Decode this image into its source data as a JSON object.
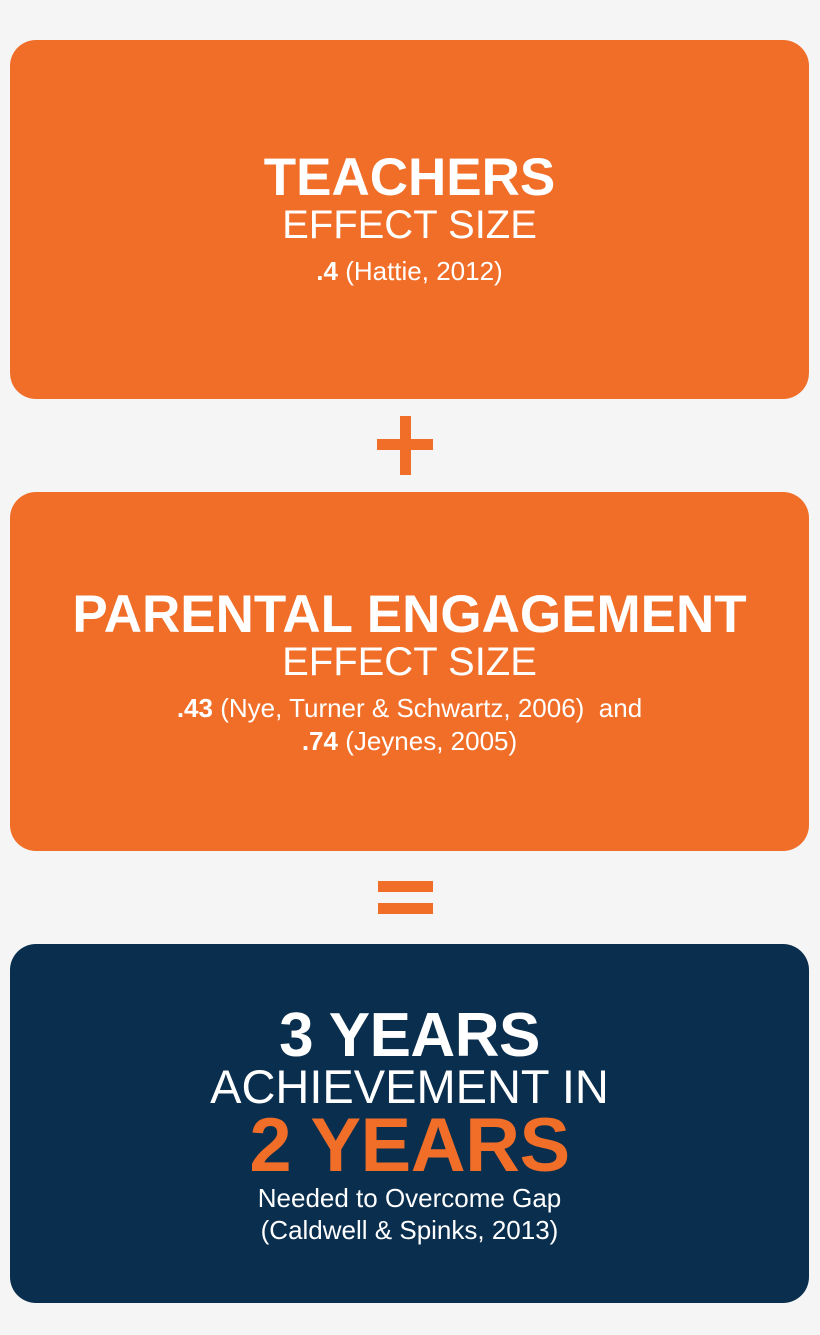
{
  "colors": {
    "background": "#f5f5f5",
    "orange": "#f06e28",
    "navy": "#0a2e4e",
    "text": "#ffffff"
  },
  "teachers": {
    "title": "TEACHERS",
    "subtitle": "EFFECT SIZE",
    "value": ".4",
    "citation": " (Hattie, 2012)"
  },
  "plus_operator": "+",
  "parental": {
    "title": "PARENTAL ENGAGEMENT",
    "subtitle": "EFFECT SIZE",
    "value1": ".43",
    "citation1": " (Nye, Turner & Schwartz, 2006)  and",
    "value2": ".74",
    "citation2": " (Jeynes, 2005)"
  },
  "equals_operator": "=",
  "result": {
    "line1": "3 YEARS",
    "line2": "ACHIEVEMENT IN",
    "line3": "2 YEARS",
    "line4": "Needed to Overcome Gap",
    "line5": "(Caldwell & Spinks, 2013)"
  }
}
